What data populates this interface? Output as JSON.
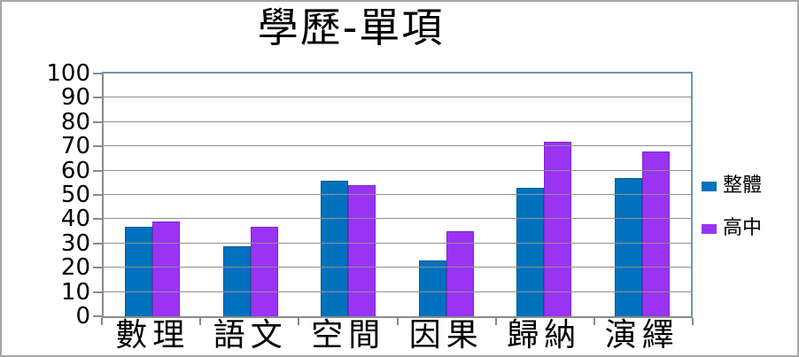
{
  "chart_data": {
    "type": "bar",
    "title": "學歷-單項",
    "categories": [
      "數理",
      "語文",
      "空間",
      "因果",
      "歸納",
      "演繹"
    ],
    "series": [
      {
        "name": "整體",
        "color": "#0072bd",
        "edge_color": "#015a96",
        "values": [
          37,
          29,
          56,
          23,
          53,
          57
        ]
      },
      {
        "name": "高中",
        "color": "#9a33f2",
        "edge_color": "#7c27cc",
        "values": [
          39,
          37,
          54,
          35,
          72,
          68
        ]
      }
    ],
    "xlabel": "",
    "ylabel": "",
    "ylim": [
      0,
      100
    ],
    "yticks": [
      0,
      10,
      20,
      30,
      40,
      50,
      60,
      70,
      80,
      90,
      100
    ],
    "grid": true,
    "legend_position": "right"
  },
  "colors": {
    "gridline": "#909090",
    "axis": "#8a8a8a",
    "plot_border": "#6c96b4",
    "frame_border": "#a6a6a6",
    "background": "#ffffff",
    "text": "#000000"
  }
}
